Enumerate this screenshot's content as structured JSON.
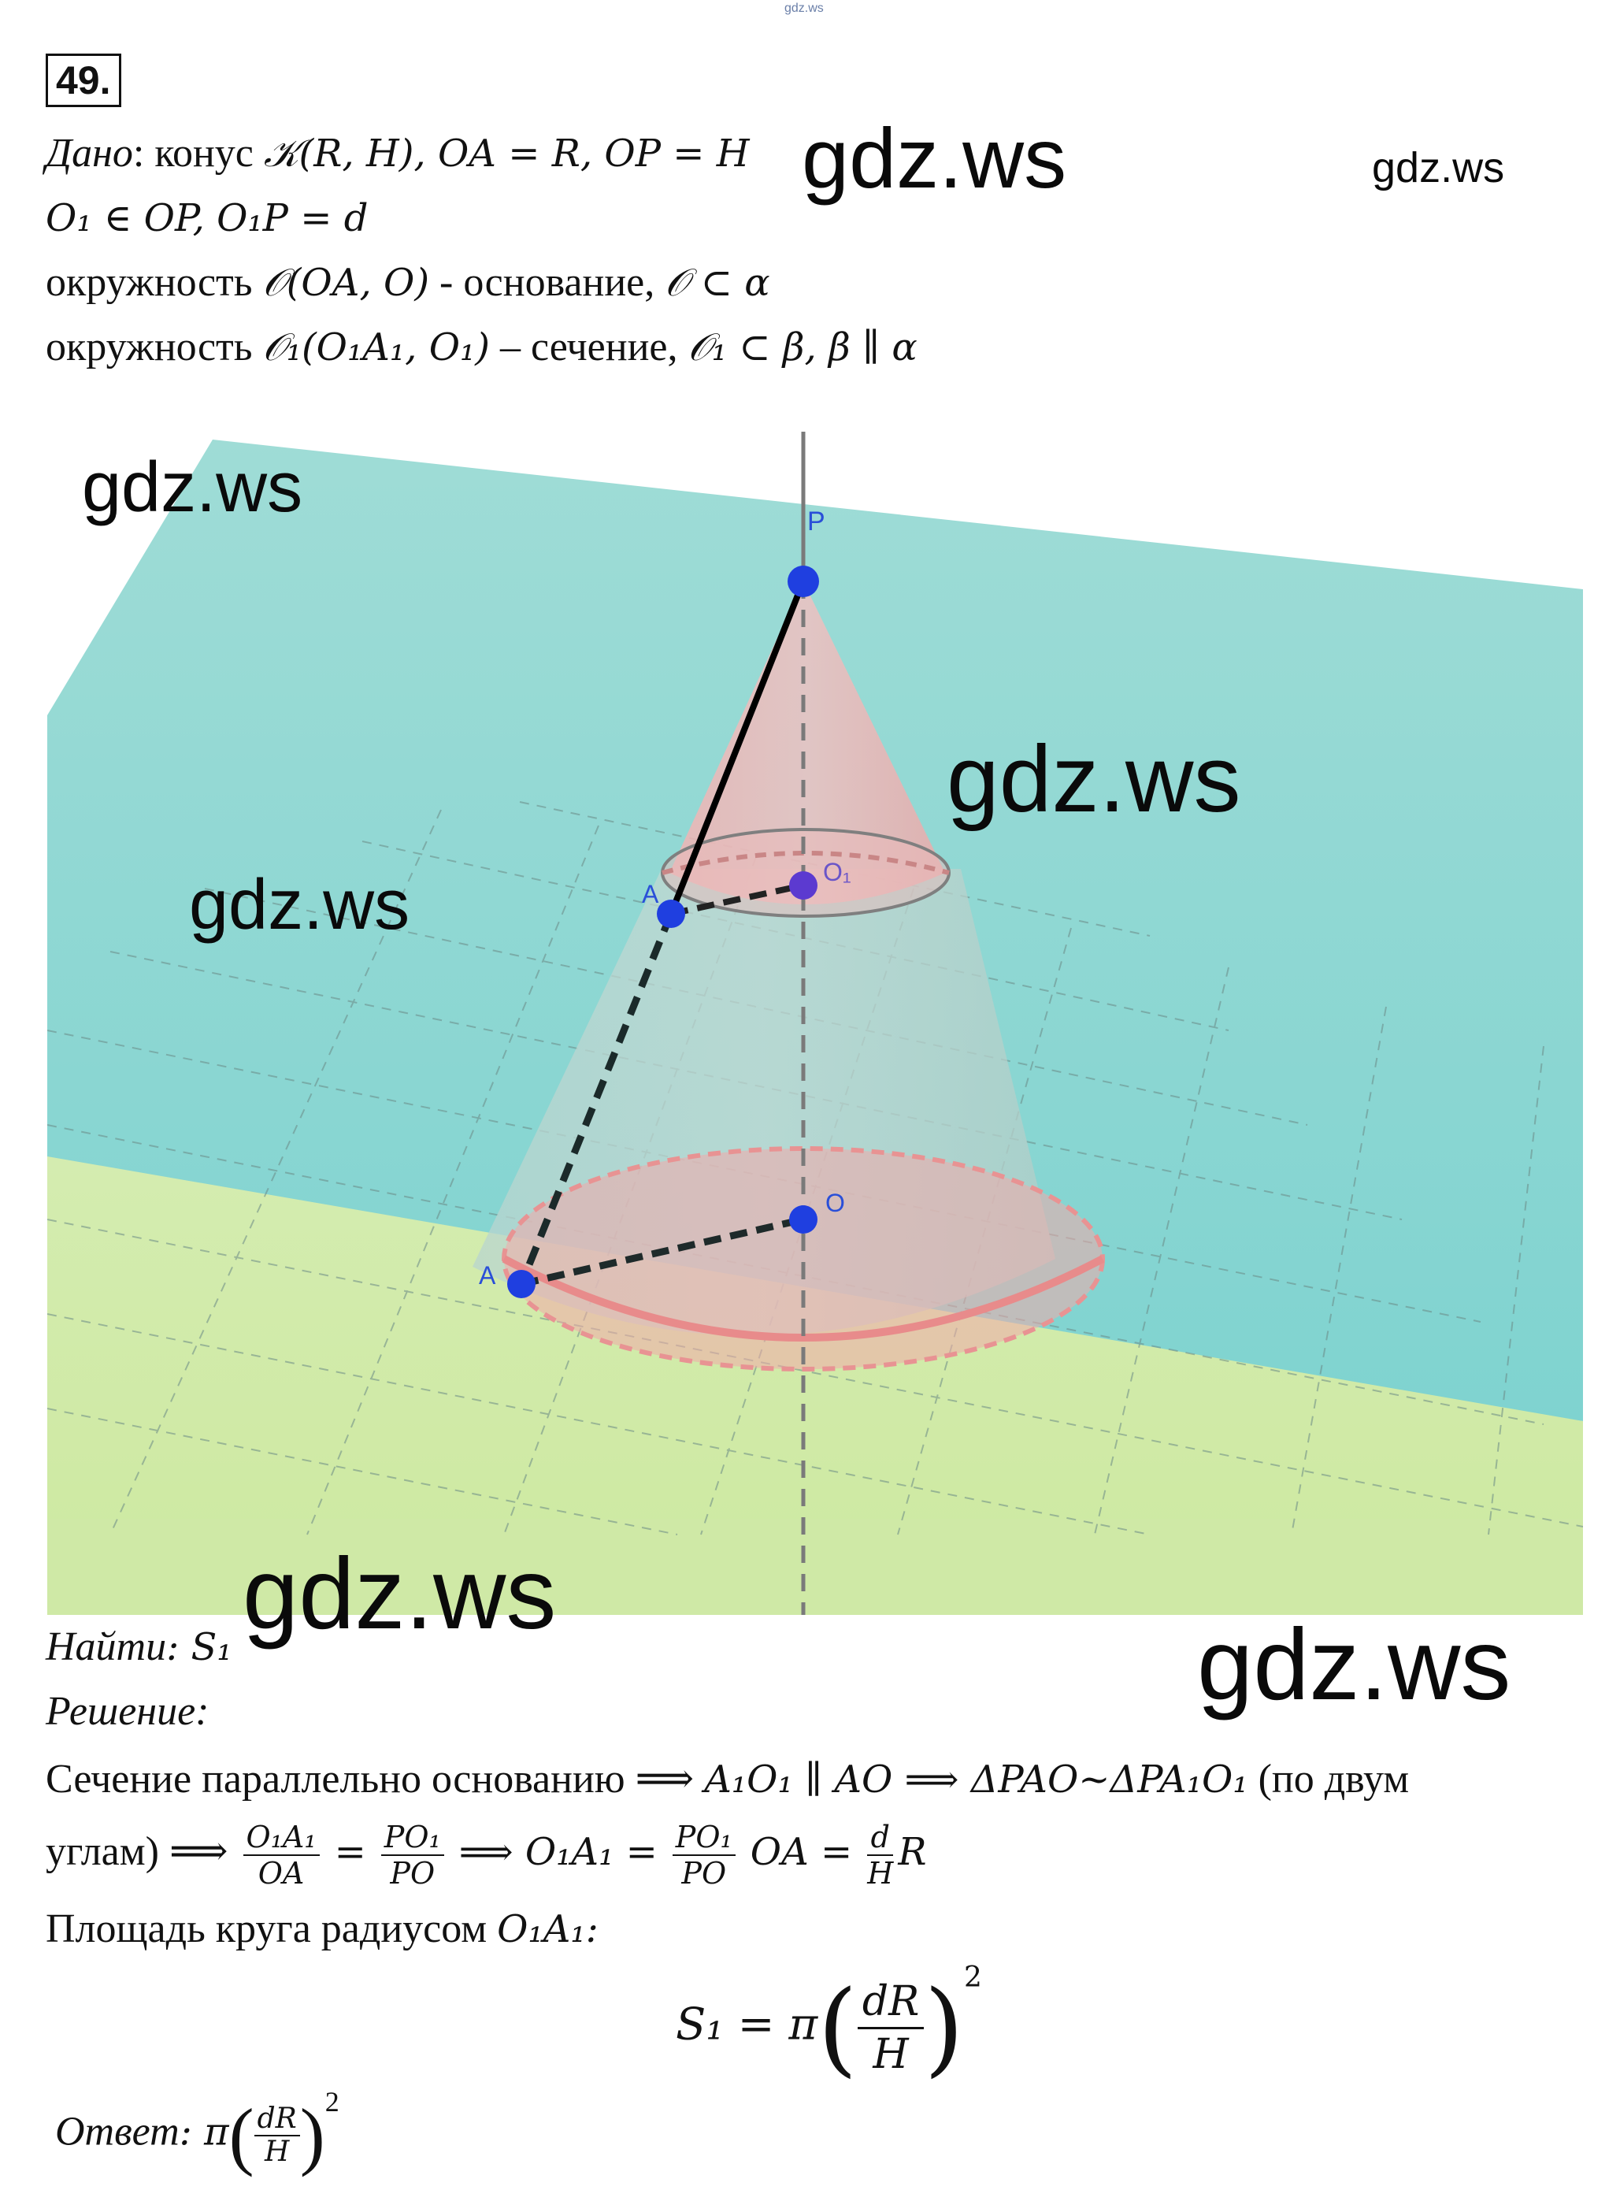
{
  "header_mark": "gdz.ws",
  "task_number": "49.",
  "given": {
    "label": "Дано",
    "line1_text": ": конус ",
    "line1_math": "𝒦(R, H), OA = R, OP = H",
    "line2_math": "O₁ ∈ OP, O₁P = d",
    "line3_text": "окружность ",
    "line3_math_a": "𝒪(OA, O)",
    "line3_mid": " - основание, ",
    "line3_math_b": "𝒪 ⊂ α",
    "line4_text": "окружность ",
    "line4_math_a": "𝒪₁(O₁A₁, O₁)",
    "line4_mid": " – сечение, ",
    "line4_math_b": "𝒪₁ ⊂ β, β ∥ α"
  },
  "figure": {
    "labels": {
      "P": "P",
      "A1": "A",
      "O1": "O₁",
      "O": "O",
      "A": "A"
    }
  },
  "find": {
    "label": "Найти",
    "value": ": S₁"
  },
  "solution": {
    "label": "Решение:",
    "line1_text": "Сечение параллельно основанию ⟹ ",
    "line1_math": "A₁O₁ ∥ AO ⟹ ΔPAO~ΔPA₁O₁",
    "line1_tail": " (по двум",
    "line2_text": "углам) ⟹ ",
    "f1_num": "O₁A₁",
    "f1_den": "OA",
    "eq": "=",
    "f2_num": "PO₁",
    "f2_den": "PO",
    "arrow": "⟹ O₁A₁ =",
    "f3_num": "PO₁",
    "f3_den": "PO",
    "mid": "OA =",
    "f4_num": "d",
    "f4_den": "H",
    "tail": "R",
    "line3_text": "Площадь круга радиусом ",
    "line3_math": "O₁A₁:",
    "formula_left": "S₁ = π",
    "formula_num": "dR",
    "formula_den": "H",
    "formula_exp": "2"
  },
  "answer": {
    "label": "Ответ",
    "sep": ": π",
    "num": "dR",
    "den": "H",
    "exp": "2"
  },
  "watermarks": [
    "gdz.ws",
    "gdz.ws",
    "gdz.ws",
    "gdz.ws",
    "gdz.ws",
    "gdz.ws",
    "gdz.ws"
  ]
}
